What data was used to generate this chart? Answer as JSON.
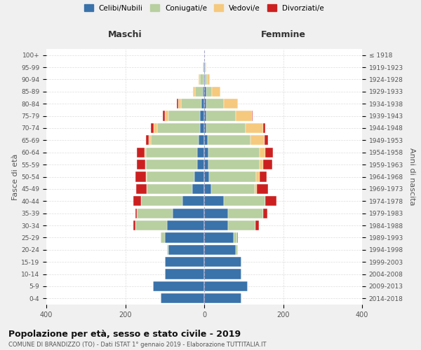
{
  "age_groups": [
    "0-4",
    "5-9",
    "10-14",
    "15-19",
    "20-24",
    "25-29",
    "30-34",
    "35-39",
    "40-44",
    "45-49",
    "50-54",
    "55-59",
    "60-64",
    "65-69",
    "70-74",
    "75-79",
    "80-84",
    "85-89",
    "90-94",
    "95-99",
    "100+"
  ],
  "birth_years": [
    "2014-2018",
    "2009-2013",
    "2004-2008",
    "1999-2003",
    "1994-1998",
    "1989-1993",
    "1984-1988",
    "1979-1983",
    "1974-1978",
    "1969-1973",
    "1964-1968",
    "1959-1963",
    "1954-1958",
    "1949-1953",
    "1944-1948",
    "1939-1943",
    "1934-1938",
    "1929-1933",
    "1924-1928",
    "1919-1923",
    "≤ 1918"
  ],
  "maschi": {
    "celibi": [
      110,
      130,
      100,
      100,
      90,
      100,
      95,
      80,
      55,
      30,
      25,
      18,
      18,
      15,
      10,
      10,
      8,
      3,
      2,
      1,
      0
    ],
    "coniugati": [
      0,
      0,
      0,
      0,
      5,
      10,
      80,
      90,
      105,
      115,
      120,
      130,
      130,
      120,
      110,
      80,
      50,
      20,
      8,
      2,
      0
    ],
    "vedovi": [
      0,
      0,
      0,
      0,
      0,
      0,
      0,
      0,
      0,
      0,
      2,
      2,
      3,
      5,
      8,
      10,
      8,
      5,
      4,
      1,
      0
    ],
    "divorziati": [
      0,
      0,
      0,
      0,
      0,
      0,
      5,
      5,
      20,
      28,
      28,
      20,
      20,
      8,
      8,
      5,
      3,
      0,
      0,
      0,
      0
    ]
  },
  "femmine": {
    "nubili": [
      95,
      110,
      95,
      95,
      80,
      75,
      60,
      60,
      50,
      18,
      12,
      10,
      10,
      8,
      5,
      5,
      5,
      5,
      2,
      1,
      0
    ],
    "coniugate": [
      0,
      0,
      0,
      0,
      5,
      8,
      70,
      90,
      105,
      110,
      120,
      130,
      130,
      110,
      100,
      75,
      45,
      15,
      5,
      2,
      0
    ],
    "vedove": [
      0,
      0,
      0,
      0,
      0,
      0,
      0,
      0,
      0,
      5,
      8,
      10,
      15,
      35,
      45,
      40,
      35,
      20,
      8,
      2,
      0
    ],
    "divorziate": [
      0,
      0,
      0,
      0,
      0,
      3,
      8,
      10,
      28,
      28,
      18,
      22,
      20,
      8,
      5,
      3,
      0,
      0,
      0,
      0,
      0
    ]
  },
  "colors": {
    "celibi": "#3a72aa",
    "coniugati": "#b8cfa0",
    "vedovi": "#f5c97e",
    "divorziati": "#cc2020"
  },
  "xlim": 400,
  "title": "Popolazione per età, sesso e stato civile - 2019",
  "subtitle": "COMUNE DI BRANDIZZO (TO) - Dati ISTAT 1° gennaio 2019 - Elaborazione TUTTITALIA.IT",
  "ylabel_left": "Fasce di età",
  "ylabel_right": "Anni di nascita",
  "xlabel_left": "Maschi",
  "xlabel_right": "Femmine",
  "background_color": "#f0f0f0",
  "plot_bg": "#ffffff"
}
